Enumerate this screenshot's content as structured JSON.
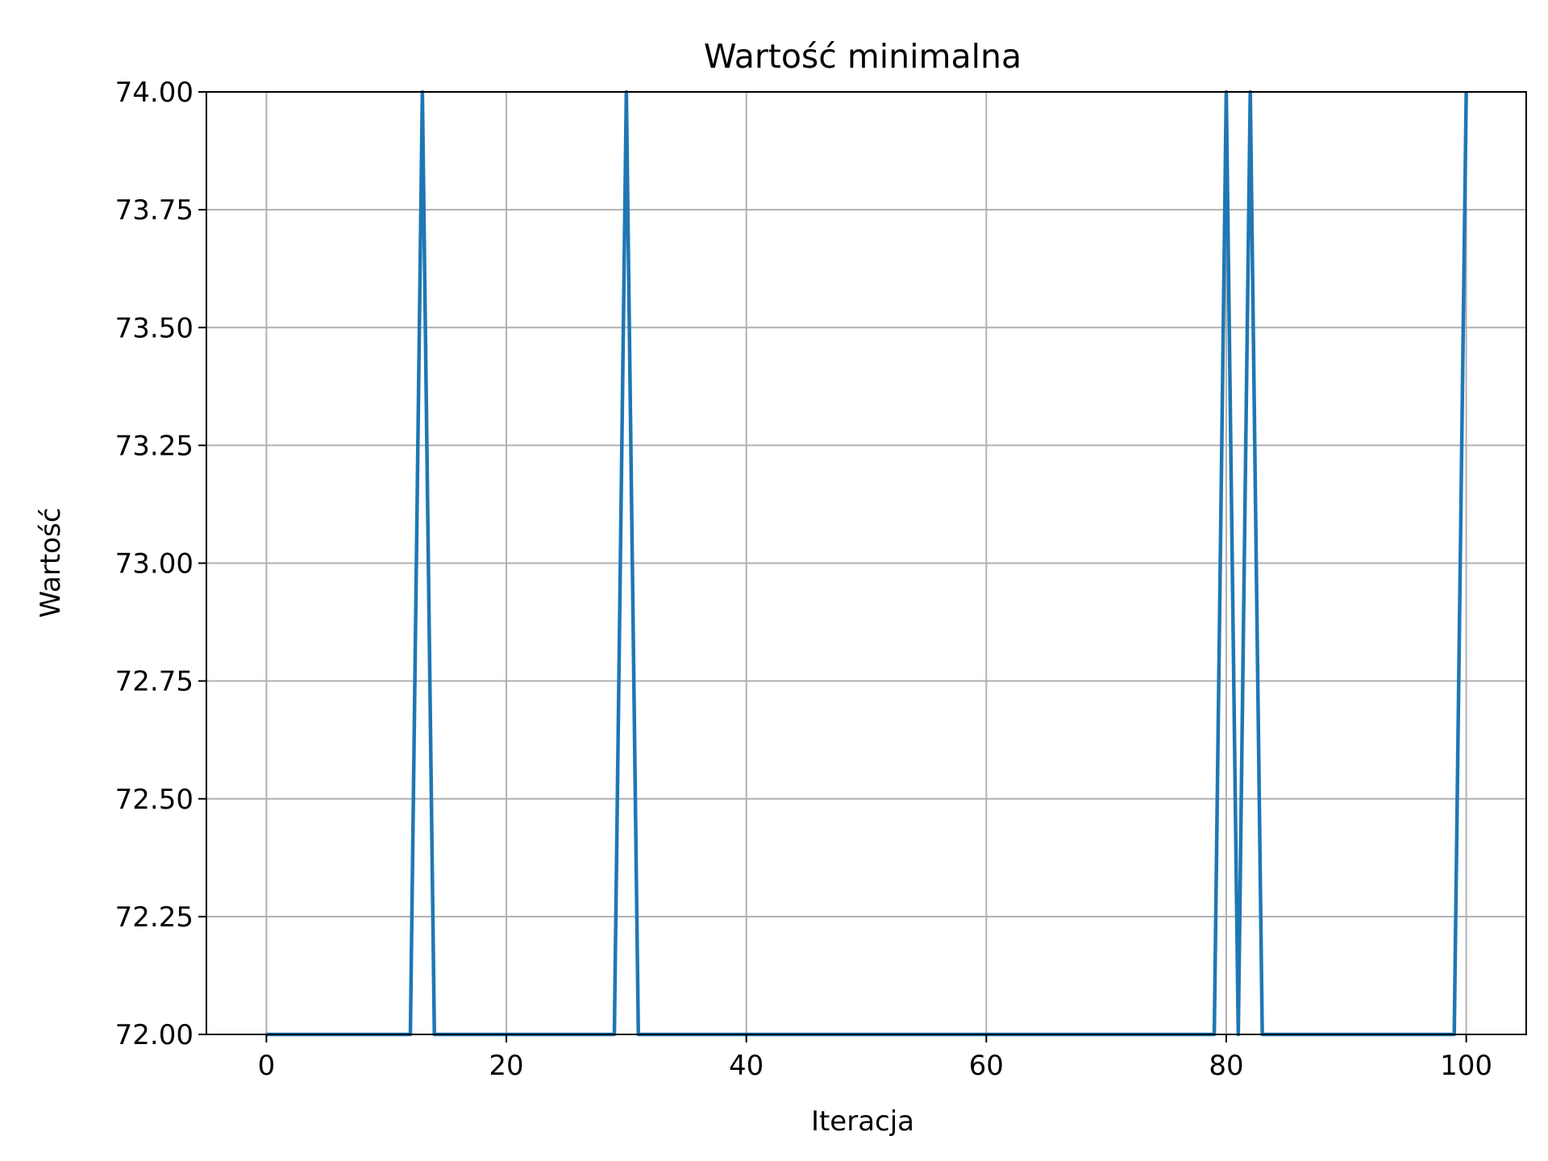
{
  "chart_data": {
    "type": "line",
    "title": "Wartość minimalna",
    "xlabel": "Iteracja",
    "ylabel": "Wartość",
    "xlim": [
      -5,
      105
    ],
    "ylim": [
      72,
      74
    ],
    "xticks": [
      0,
      20,
      40,
      60,
      80,
      100
    ],
    "xtick_labels": [
      "0",
      "20",
      "40",
      "60",
      "80",
      "100"
    ],
    "yticks": [
      72.0,
      72.25,
      72.5,
      72.75,
      73.0,
      73.25,
      73.5,
      73.75,
      74.0
    ],
    "ytick_labels": [
      "72.00",
      "72.25",
      "72.50",
      "72.75",
      "73.00",
      "73.25",
      "73.50",
      "73.75",
      "74.00"
    ],
    "grid": true,
    "line_color": "#1f77b4",
    "grid_color": "#b0b0b0",
    "series": [
      {
        "x": [
          0,
          1,
          2,
          3,
          4,
          5,
          6,
          7,
          8,
          9,
          10,
          11,
          12,
          13,
          14,
          15,
          16,
          17,
          18,
          19,
          20,
          21,
          22,
          23,
          24,
          25,
          26,
          27,
          28,
          29,
          30,
          31,
          32,
          33,
          34,
          35,
          36,
          37,
          38,
          39,
          40,
          41,
          42,
          43,
          44,
          45,
          46,
          47,
          48,
          49,
          50,
          51,
          52,
          53,
          54,
          55,
          56,
          57,
          58,
          59,
          60,
          61,
          62,
          63,
          64,
          65,
          66,
          67,
          68,
          69,
          70,
          71,
          72,
          73,
          74,
          75,
          76,
          77,
          78,
          79,
          80,
          81,
          82,
          83,
          84,
          85,
          86,
          87,
          88,
          89,
          90,
          91,
          92,
          93,
          94,
          95,
          96,
          97,
          98,
          99,
          100
        ],
        "y": [
          72,
          72,
          72,
          72,
          72,
          72,
          72,
          72,
          72,
          72,
          72,
          72,
          72,
          74,
          72,
          72,
          72,
          72,
          72,
          72,
          72,
          72,
          72,
          72,
          72,
          72,
          72,
          72,
          72,
          72,
          74,
          72,
          72,
          72,
          72,
          72,
          72,
          72,
          72,
          72,
          72,
          72,
          72,
          72,
          72,
          72,
          72,
          72,
          72,
          72,
          72,
          72,
          72,
          72,
          72,
          72,
          72,
          72,
          72,
          72,
          72,
          72,
          72,
          72,
          72,
          72,
          72,
          72,
          72,
          72,
          72,
          72,
          72,
          72,
          72,
          72,
          72,
          72,
          72,
          72,
          74,
          72,
          74,
          72,
          72,
          72,
          72,
          72,
          72,
          72,
          72,
          72,
          72,
          72,
          72,
          72,
          72,
          72,
          72,
          72,
          74
        ]
      }
    ]
  }
}
